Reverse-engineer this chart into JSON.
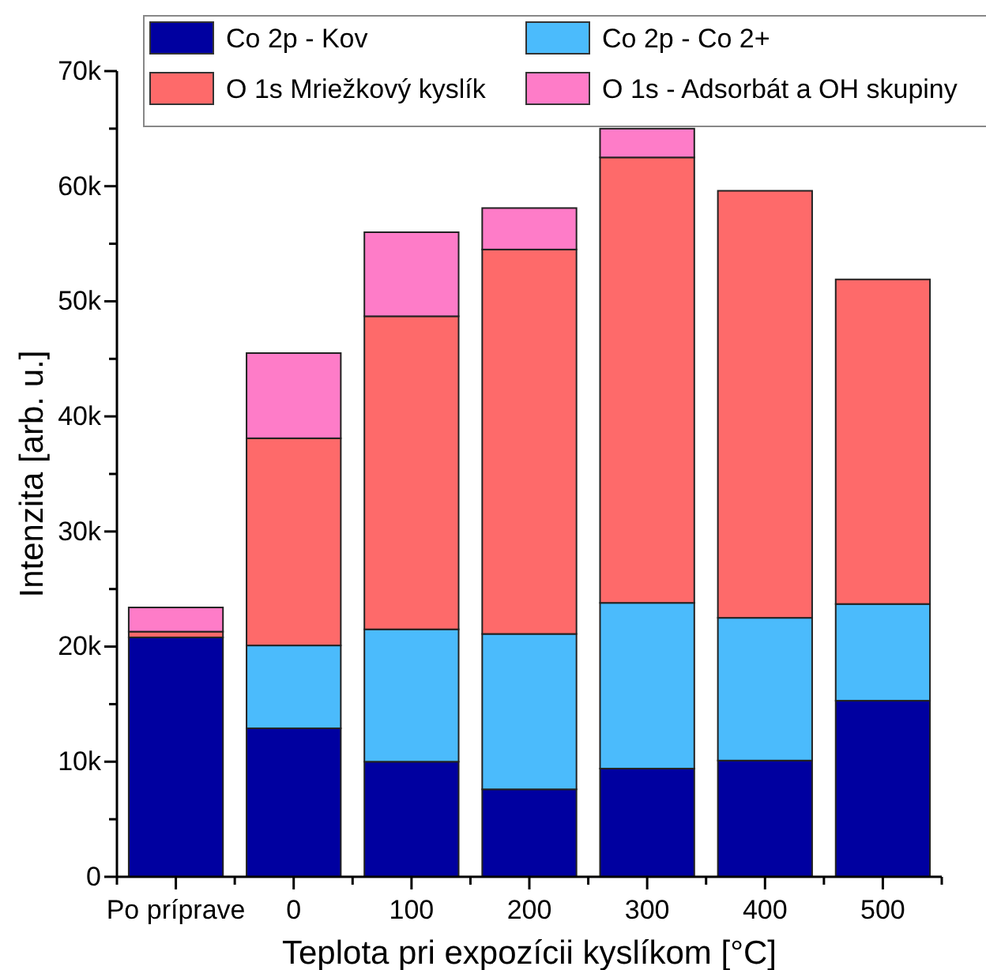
{
  "chart_data": {
    "type": "bar",
    "stacked": true,
    "xlabel": "Teplota pri expozícii kyslíkom [°C]",
    "ylabel": "Intenzita [arb. u.]",
    "categories": [
      "Po príprave",
      "0",
      "100",
      "200",
      "300",
      "400",
      "500"
    ],
    "series": [
      {
        "name": "Co 2p - Kov",
        "color": "#0000a0",
        "values": [
          20800,
          12900,
          10000,
          7600,
          9400,
          10100,
          15300
        ]
      },
      {
        "name": "Co 2p - Co 2+",
        "color": "#4bbbfc",
        "values": [
          null,
          7200,
          11500,
          13500,
          14400,
          12400,
          8400
        ]
      },
      {
        "name": "O 1s Mriežkový kyslík",
        "color": "#fe6a6a",
        "values": [
          500,
          18000,
          27200,
          33400,
          38700,
          37100,
          28200
        ]
      },
      {
        "name": "O 1s - Adsorbát a OH skupiny",
        "color": "#fe7cc8",
        "values": [
          2100,
          7400,
          7300,
          3600,
          2500,
          0,
          0
        ]
      }
    ],
    "ylim": [
      0,
      70000
    ],
    "yticks": [
      {
        "value": 0,
        "label": "0"
      },
      {
        "value": 5000,
        "label": null
      },
      {
        "value": 10000,
        "label": "10k"
      },
      {
        "value": 15000,
        "label": null
      },
      {
        "value": 20000,
        "label": "20k"
      },
      {
        "value": 25000,
        "label": null
      },
      {
        "value": 30000,
        "label": "30k"
      },
      {
        "value": 35000,
        "label": null
      },
      {
        "value": 40000,
        "label": "40k"
      },
      {
        "value": 45000,
        "label": null
      },
      {
        "value": 50000,
        "label": "50k"
      },
      {
        "value": 55000,
        "label": null
      },
      {
        "value": 60000,
        "label": "60k"
      },
      {
        "value": 65000,
        "label": null
      },
      {
        "value": 70000,
        "label": "70k"
      }
    ],
    "grid": false,
    "legend": "top"
  }
}
